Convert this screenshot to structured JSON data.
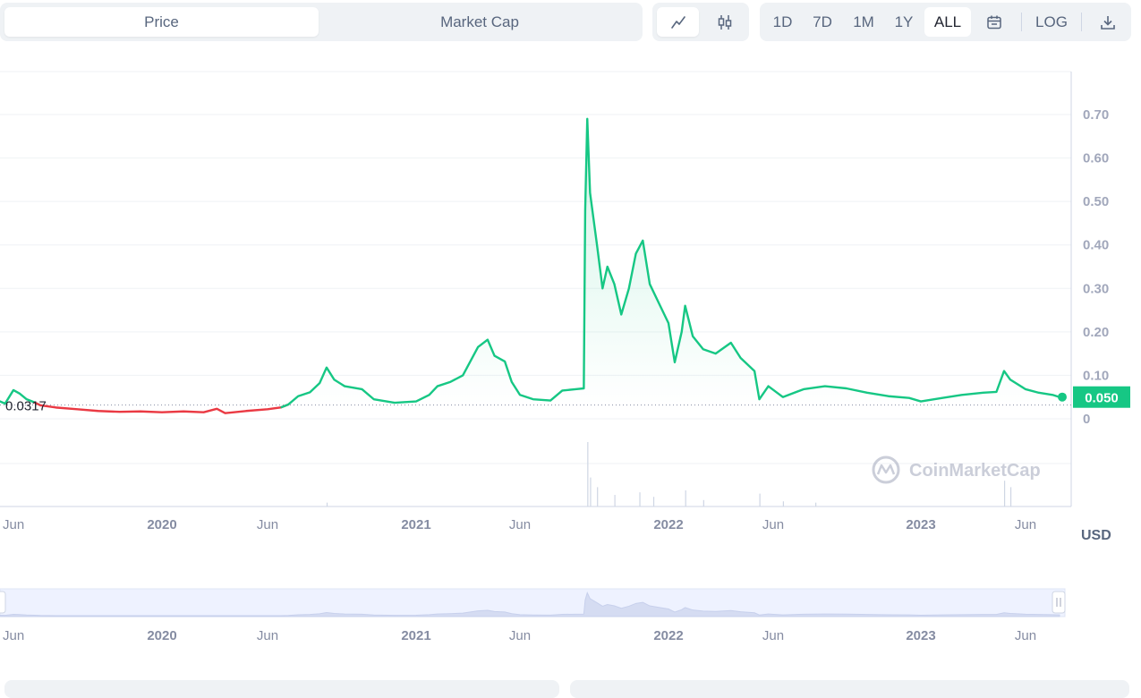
{
  "toolbar": {
    "tabs": [
      {
        "label": "Price",
        "active": true
      },
      {
        "label": "Market Cap",
        "active": false
      }
    ],
    "chart_types": [
      "line-chart-icon",
      "candlestick-icon"
    ],
    "ranges": [
      {
        "label": "1D",
        "active": false
      },
      {
        "label": "7D",
        "active": false
      },
      {
        "label": "1M",
        "active": false
      },
      {
        "label": "1Y",
        "active": false
      },
      {
        "label": "ALL",
        "active": true
      }
    ],
    "calendar_icon": "calendar-icon",
    "log_label": "LOG",
    "download_icon": "download-icon"
  },
  "colors": {
    "up": "#16c784",
    "down": "#ea3943",
    "grid": "#eff2f5",
    "axis_text": "#a1a7bb",
    "volume": "#cfd6e4",
    "navigator_fill": "#eef2ff"
  },
  "watermark": "CoinMarketCap",
  "chart_data": {
    "type": "line",
    "y_axis": {
      "ticks": [
        "0.70",
        "0.60",
        "0.50",
        "0.40",
        "0.30",
        "0.20",
        "0.10",
        "0"
      ],
      "ylim": [
        0,
        0.7
      ],
      "unit": "USD"
    },
    "x_ticks": [
      {
        "label": "Jun",
        "year": false,
        "date": "2019-06-01"
      },
      {
        "label": "2020",
        "year": true,
        "date": "2020-01-01"
      },
      {
        "label": "Jun",
        "year": false,
        "date": "2020-06-01"
      },
      {
        "label": "2021",
        "year": true,
        "date": "2021-01-01"
      },
      {
        "label": "Jun",
        "year": false,
        "date": "2021-06-01"
      },
      {
        "label": "2022",
        "year": true,
        "date": "2022-01-01"
      },
      {
        "label": "Jun",
        "year": false,
        "date": "2022-06-01"
      },
      {
        "label": "2023",
        "year": true,
        "date": "2023-01-01"
      },
      {
        "label": "Jun",
        "year": false,
        "date": "2023-06-01"
      }
    ],
    "baseline_price": 0.0317,
    "baseline_label": "0.0317",
    "current_price": 0.05,
    "current_label": "0.050",
    "currency_label": "USD",
    "series": [
      {
        "points": [
          [
            "2019-04-25",
            0.04
          ],
          [
            "2019-05-10",
            0.042
          ],
          [
            "2019-05-20",
            0.035
          ],
          [
            "2019-06-01",
            0.066
          ],
          [
            "2019-06-10",
            0.058
          ],
          [
            "2019-06-20",
            0.045
          ],
          [
            "2019-07-01",
            0.038
          ],
          [
            "2019-07-10",
            0.031
          ],
          [
            "2019-08-01",
            0.026
          ],
          [
            "2019-09-01",
            0.022
          ],
          [
            "2019-10-01",
            0.018
          ],
          [
            "2019-11-01",
            0.016
          ],
          [
            "2019-12-01",
            0.017
          ],
          [
            "2020-01-01",
            0.015
          ],
          [
            "2020-02-01",
            0.017
          ],
          [
            "2020-03-01",
            0.015
          ],
          [
            "2020-03-20",
            0.023
          ],
          [
            "2020-04-01",
            0.013
          ],
          [
            "2020-05-01",
            0.018
          ],
          [
            "2020-06-01",
            0.022
          ],
          [
            "2020-06-20",
            0.026
          ],
          [
            "2020-07-01",
            0.033
          ],
          [
            "2020-07-15",
            0.052
          ],
          [
            "2020-08-01",
            0.061
          ],
          [
            "2020-08-15",
            0.082
          ],
          [
            "2020-08-25",
            0.118
          ],
          [
            "2020-09-05",
            0.09
          ],
          [
            "2020-09-20",
            0.075
          ],
          [
            "2020-10-15",
            0.068
          ],
          [
            "2020-11-01",
            0.045
          ],
          [
            "2020-12-01",
            0.037
          ],
          [
            "2021-01-01",
            0.04
          ],
          [
            "2021-01-20",
            0.055
          ],
          [
            "2021-02-01",
            0.075
          ],
          [
            "2021-02-20",
            0.085
          ],
          [
            "2021-03-10",
            0.1
          ],
          [
            "2021-04-01",
            0.165
          ],
          [
            "2021-04-15",
            0.182
          ],
          [
            "2021-04-25",
            0.145
          ],
          [
            "2021-05-10",
            0.132
          ],
          [
            "2021-05-20",
            0.085
          ],
          [
            "2021-06-01",
            0.055
          ],
          [
            "2021-06-20",
            0.045
          ],
          [
            "2021-07-15",
            0.042
          ],
          [
            "2021-08-01",
            0.065
          ],
          [
            "2021-08-20",
            0.068
          ],
          [
            "2021-09-01",
            0.07
          ],
          [
            "2021-09-03",
            0.48
          ],
          [
            "2021-09-06",
            0.69
          ],
          [
            "2021-09-10",
            0.52
          ],
          [
            "2021-09-20",
            0.4
          ],
          [
            "2021-09-28",
            0.3
          ],
          [
            "2021-10-05",
            0.35
          ],
          [
            "2021-10-15",
            0.31
          ],
          [
            "2021-10-25",
            0.24
          ],
          [
            "2021-11-05",
            0.3
          ],
          [
            "2021-11-15",
            0.38
          ],
          [
            "2021-11-25",
            0.41
          ],
          [
            "2021-12-05",
            0.31
          ],
          [
            "2021-12-20",
            0.26
          ],
          [
            "2022-01-01",
            0.22
          ],
          [
            "2022-01-10",
            0.13
          ],
          [
            "2022-01-20",
            0.2
          ],
          [
            "2022-01-25",
            0.26
          ],
          [
            "2022-02-05",
            0.19
          ],
          [
            "2022-02-20",
            0.16
          ],
          [
            "2022-03-10",
            0.15
          ],
          [
            "2022-04-01",
            0.175
          ],
          [
            "2022-04-15",
            0.14
          ],
          [
            "2022-05-05",
            0.11
          ],
          [
            "2022-05-12",
            0.045
          ],
          [
            "2022-05-25",
            0.075
          ],
          [
            "2022-06-15",
            0.05
          ],
          [
            "2022-07-15",
            0.068
          ],
          [
            "2022-08-15",
            0.075
          ],
          [
            "2022-09-15",
            0.07
          ],
          [
            "2022-10-15",
            0.06
          ],
          [
            "2022-11-15",
            0.052
          ],
          [
            "2022-12-15",
            0.048
          ],
          [
            "2023-01-01",
            0.04
          ],
          [
            "2023-02-01",
            0.048
          ],
          [
            "2023-03-01",
            0.055
          ],
          [
            "2023-04-01",
            0.06
          ],
          [
            "2023-04-20",
            0.062
          ],
          [
            "2023-05-01",
            0.11
          ],
          [
            "2023-05-10",
            0.09
          ],
          [
            "2023-06-01",
            0.068
          ],
          [
            "2023-06-20",
            0.06
          ],
          [
            "2023-07-10",
            0.055
          ],
          [
            "2023-07-20",
            0.05
          ]
        ]
      }
    ],
    "volume_spikes": [
      [
        "2020-08-25",
        0.06
      ],
      [
        "2021-09-06",
        1.0
      ],
      [
        "2021-09-10",
        0.45
      ],
      [
        "2021-09-20",
        0.3
      ],
      [
        "2021-10-15",
        0.18
      ],
      [
        "2021-11-20",
        0.22
      ],
      [
        "2021-12-10",
        0.15
      ],
      [
        "2022-01-25",
        0.25
      ],
      [
        "2022-02-20",
        0.1
      ],
      [
        "2022-05-12",
        0.2
      ],
      [
        "2022-06-15",
        0.08
      ],
      [
        "2022-08-01",
        0.06
      ],
      [
        "2023-05-01",
        0.4
      ],
      [
        "2023-05-10",
        0.3
      ]
    ]
  }
}
